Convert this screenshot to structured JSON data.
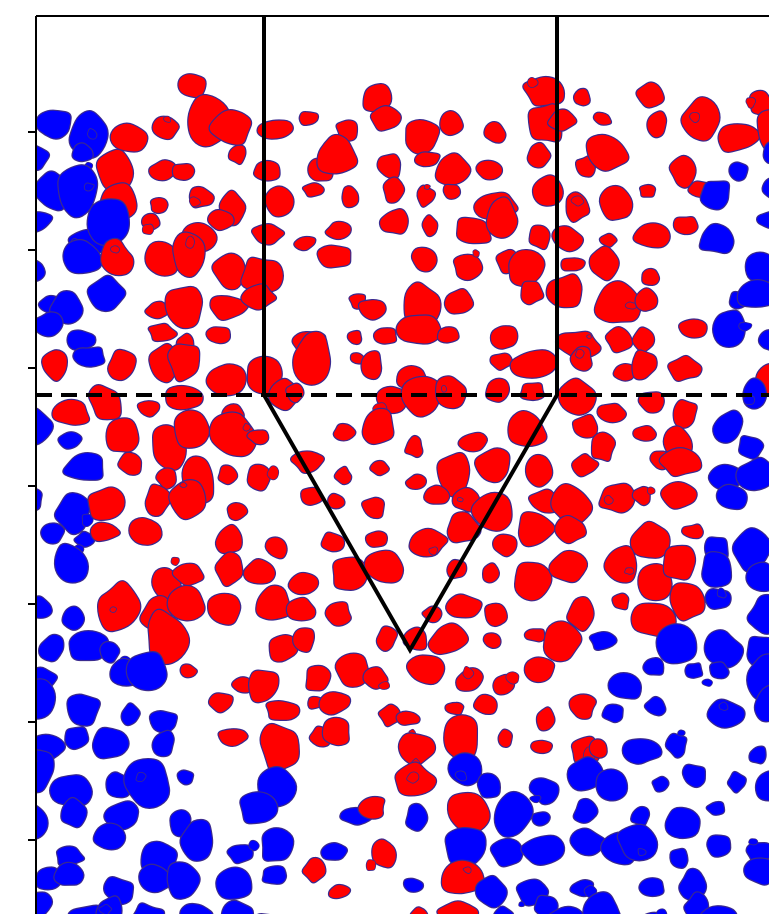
{
  "figure": {
    "colors": {
      "red_phase": "#ff0000",
      "blue_phase": "#0000ff",
      "grain_outline": "#3a2a8f",
      "background": "#ffffff",
      "probe": "#000000",
      "frame": "#000000"
    },
    "icons": {
      "probe": "cone-penetrometer-outline",
      "reference_line": "dashed-horizontal-line"
    },
    "tick_count_left": 7
  }
}
